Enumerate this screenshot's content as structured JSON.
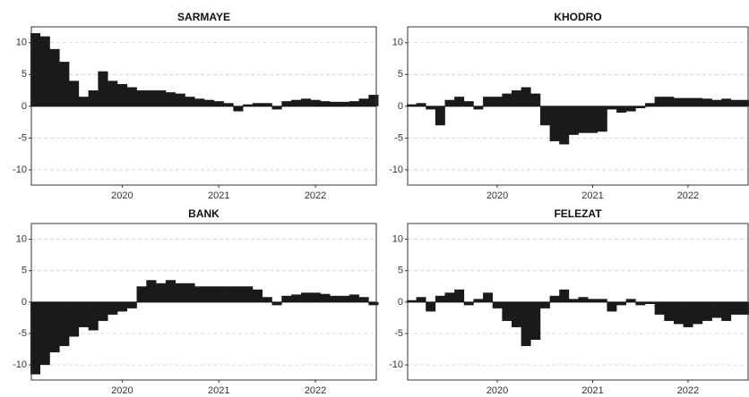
{
  "chart_data": [
    {
      "type": "bar",
      "title": "SARMAYE",
      "color": "#1a1a1a",
      "x": [
        2019.1,
        2019.2,
        2019.3,
        2019.4,
        2019.5,
        2019.6,
        2019.7,
        2019.8,
        2019.9,
        2020.0,
        2020.1,
        2020.2,
        2020.3,
        2020.4,
        2020.5,
        2020.6,
        2020.7,
        2020.8,
        2020.9,
        2021.0,
        2021.1,
        2021.2,
        2021.3,
        2021.4,
        2021.5,
        2021.6,
        2021.7,
        2021.8,
        2021.9,
        2022.0,
        2022.1,
        2022.2,
        2022.3,
        2022.4,
        2022.5,
        2022.6
      ],
      "values": [
        11.5,
        11,
        9,
        7,
        4,
        1.5,
        2.5,
        5.5,
        4,
        3.5,
        3,
        2.5,
        2.5,
        2.5,
        2.2,
        2,
        1.5,
        1.2,
        1,
        0.8,
        0.5,
        -0.8,
        0.3,
        0.5,
        0.5,
        -0.5,
        0.8,
        1,
        1.2,
        1,
        0.8,
        0.7,
        0.7,
        0.8,
        1.2,
        1.8
      ],
      "xlim": [
        2019.06,
        2022.63
      ],
      "ylim": [
        -12.4,
        12.5
      ],
      "xticks": [
        2020,
        2021,
        2022
      ],
      "yticks": [
        10,
        5,
        0,
        -5,
        -10
      ],
      "grid": true
    },
    {
      "type": "bar",
      "title": "KHODRO",
      "color": "#1a1a1a",
      "x": [
        2019.1,
        2019.2,
        2019.3,
        2019.4,
        2019.5,
        2019.6,
        2019.7,
        2019.8,
        2019.9,
        2020.0,
        2020.1,
        2020.2,
        2020.3,
        2020.4,
        2020.5,
        2020.6,
        2020.7,
        2020.8,
        2020.9,
        2021.0,
        2021.1,
        2021.2,
        2021.3,
        2021.4,
        2021.5,
        2021.6,
        2021.7,
        2021.8,
        2021.9,
        2022.0,
        2022.1,
        2022.2,
        2022.3,
        2022.4,
        2022.5,
        2022.6
      ],
      "values": [
        0.3,
        0.5,
        -0.5,
        -3,
        1,
        1.5,
        0.8,
        -0.5,
        1.5,
        1.5,
        2,
        2.5,
        3,
        2,
        -3,
        -5.5,
        -6,
        -4.5,
        -4.2,
        -4.2,
        -4,
        -0.5,
        -1,
        -0.8,
        -0.3,
        0.5,
        1.5,
        1.5,
        1.3,
        1.3,
        1.3,
        1.2,
        1,
        1.2,
        1,
        1
      ],
      "xlim": [
        2019.06,
        2022.63
      ],
      "ylim": [
        -12.4,
        12.5
      ],
      "xticks": [
        2020,
        2021,
        2022
      ],
      "yticks": [
        10,
        5,
        0,
        -5,
        -10
      ],
      "grid": true
    },
    {
      "type": "bar",
      "title": "BANK",
      "color": "#1a1a1a",
      "x": [
        2019.1,
        2019.2,
        2019.3,
        2019.4,
        2019.5,
        2019.6,
        2019.7,
        2019.8,
        2019.9,
        2020.0,
        2020.1,
        2020.2,
        2020.3,
        2020.4,
        2020.5,
        2020.6,
        2020.7,
        2020.8,
        2020.9,
        2021.0,
        2021.1,
        2021.2,
        2021.3,
        2021.4,
        2021.5,
        2021.6,
        2021.7,
        2021.8,
        2021.9,
        2022.0,
        2022.1,
        2022.2,
        2022.3,
        2022.4,
        2022.5,
        2022.6
      ],
      "values": [
        -11.5,
        -10,
        -8,
        -7,
        -5.5,
        -4,
        -4.5,
        -3,
        -2,
        -1.5,
        -1,
        2.5,
        3.5,
        3,
        3.5,
        3,
        3,
        2.5,
        2.5,
        2.5,
        2.5,
        2.5,
        2.5,
        2,
        0.8,
        -0.5,
        1,
        1.2,
        1.5,
        1.5,
        1.3,
        1,
        1,
        1.2,
        0.8,
        -0.5
      ],
      "xlim": [
        2019.06,
        2022.63
      ],
      "ylim": [
        -12.4,
        12.5
      ],
      "xticks": [
        2020,
        2021,
        2022
      ],
      "yticks": [
        10,
        5,
        0,
        -5,
        -10
      ],
      "grid": true
    },
    {
      "type": "bar",
      "title": "FELEZAT",
      "color": "#1a1a1a",
      "x": [
        2019.1,
        2019.2,
        2019.3,
        2019.4,
        2019.5,
        2019.6,
        2019.7,
        2019.8,
        2019.9,
        2020.0,
        2020.1,
        2020.2,
        2020.3,
        2020.4,
        2020.5,
        2020.6,
        2020.7,
        2020.8,
        2020.9,
        2021.0,
        2021.1,
        2021.2,
        2021.3,
        2021.4,
        2021.5,
        2021.6,
        2021.7,
        2021.8,
        2021.9,
        2022.0,
        2022.1,
        2022.2,
        2022.3,
        2022.4,
        2022.5,
        2022.6
      ],
      "values": [
        0.3,
        0.8,
        -1.5,
        1,
        1.5,
        2,
        -0.5,
        0.5,
        1.5,
        -1,
        -3,
        -4,
        -7,
        -6,
        -1,
        1,
        2,
        0.5,
        0.8,
        0.5,
        0.5,
        -1.5,
        -0.5,
        0.5,
        -0.5,
        -0.3,
        -2,
        -3,
        -3.5,
        -4,
        -3.5,
        -3,
        -2.5,
        -3,
        -2,
        -2
      ],
      "xlim": [
        2019.06,
        2022.63
      ],
      "ylim": [
        -12.4,
        12.5
      ],
      "xticks": [
        2020,
        2021,
        2022
      ],
      "yticks": [
        10,
        5,
        0,
        -5,
        -10
      ],
      "grid": true
    }
  ]
}
